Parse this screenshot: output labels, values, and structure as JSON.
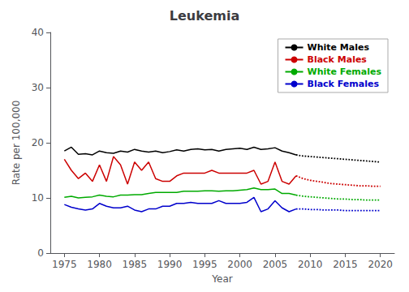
{
  "chart_data": {
    "type": "line",
    "title": "Leukemia",
    "xlabel": "Year",
    "ylabel": "Rate per 100,000",
    "xlim": [
      1973,
      2022
    ],
    "xticks": [
      1975,
      1980,
      1985,
      1990,
      1995,
      2000,
      2005,
      2010,
      2015,
      2020
    ],
    "ylim": [
      0,
      40
    ],
    "yticks": [
      0,
      10,
      20,
      30,
      40
    ],
    "grid": false,
    "legend": "upper right",
    "series": [
      {
        "name": "White Males",
        "color": "#000000",
        "line_style": "solid",
        "x": [
          1975,
          1976,
          1977,
          1978,
          1979,
          1980,
          1981,
          1982,
          1983,
          1984,
          1985,
          1986,
          1987,
          1988,
          1989,
          1990,
          1991,
          1992,
          1993,
          1994,
          1995,
          1996,
          1997,
          1998,
          1999,
          2000,
          2001,
          2002,
          2003,
          2004,
          2005,
          2006,
          2007,
          2008
        ],
        "values": [
          18.5,
          19.2,
          17.9,
          18.0,
          17.8,
          18.5,
          18.2,
          18.1,
          18.5,
          18.3,
          18.8,
          18.5,
          18.3,
          18.5,
          18.2,
          18.4,
          18.7,
          18.5,
          18.8,
          18.9,
          18.7,
          18.8,
          18.5,
          18.8,
          18.9,
          19.0,
          18.8,
          19.2,
          18.8,
          18.9,
          19.1,
          18.5,
          18.2,
          17.8
        ]
      },
      {
        "name": "Black Males",
        "color": "#cc0000",
        "line_style": "solid",
        "x": [
          1975,
          1976,
          1977,
          1978,
          1979,
          1980,
          1981,
          1982,
          1983,
          1984,
          1985,
          1986,
          1987,
          1988,
          1989,
          1990,
          1991,
          1992,
          1993,
          1994,
          1995,
          1996,
          1997,
          1998,
          1999,
          2000,
          2001,
          2002,
          2003,
          2004,
          2005,
          2006,
          2007,
          2008
        ],
        "values": [
          17.0,
          15.0,
          13.5,
          14.5,
          13.0,
          16.0,
          13.0,
          17.5,
          16.0,
          12.5,
          16.5,
          15.0,
          16.5,
          13.5,
          13.0,
          13.0,
          14.0,
          14.5,
          14.5,
          14.5,
          14.5,
          15.0,
          14.5,
          14.5,
          14.5,
          14.5,
          14.5,
          15.0,
          12.5,
          13.0,
          16.5,
          13.0,
          12.5,
          14.0
        ]
      },
      {
        "name": "White Females",
        "color": "#00aa00",
        "line_style": "solid",
        "x": [
          1975,
          1976,
          1977,
          1978,
          1979,
          1980,
          1981,
          1982,
          1983,
          1984,
          1985,
          1986,
          1987,
          1988,
          1989,
          1990,
          1991,
          1992,
          1993,
          1994,
          1995,
          1996,
          1997,
          1998,
          1999,
          2000,
          2001,
          2002,
          2003,
          2004,
          2005,
          2006,
          2007,
          2008
        ],
        "values": [
          10.1,
          10.3,
          10.0,
          10.1,
          10.2,
          10.5,
          10.3,
          10.2,
          10.5,
          10.5,
          10.6,
          10.6,
          10.8,
          11.0,
          11.0,
          11.0,
          11.0,
          11.2,
          11.2,
          11.2,
          11.3,
          11.3,
          11.2,
          11.3,
          11.3,
          11.4,
          11.5,
          11.8,
          11.5,
          11.5,
          11.6,
          10.8,
          10.8,
          10.5
        ]
      },
      {
        "name": "Black Females",
        "color": "#0000cc",
        "line_style": "solid",
        "x": [
          1975,
          1976,
          1977,
          1978,
          1979,
          1980,
          1981,
          1982,
          1983,
          1984,
          1985,
          1986,
          1987,
          1988,
          1989,
          1990,
          1991,
          1992,
          1993,
          1994,
          1995,
          1996,
          1997,
          1998,
          1999,
          2000,
          2001,
          2002,
          2003,
          2004,
          2005,
          2006,
          2007,
          2008
        ],
        "values": [
          8.8,
          8.3,
          8.0,
          7.8,
          8.0,
          9.0,
          8.5,
          8.2,
          8.2,
          8.5,
          7.8,
          7.5,
          8.0,
          8.0,
          8.5,
          8.5,
          9.0,
          9.0,
          9.2,
          9.0,
          9.0,
          9.0,
          9.5,
          9.0,
          9.0,
          9.0,
          9.2,
          10.1,
          7.5,
          8.0,
          9.5,
          8.2,
          7.5,
          8.0
        ]
      },
      {
        "name": "White Males",
        "color": "#000000",
        "line_style": "dotted",
        "x": [
          2008,
          2009,
          2010,
          2011,
          2012,
          2013,
          2014,
          2015,
          2016,
          2017,
          2018,
          2019,
          2020
        ],
        "values": [
          17.8,
          17.6,
          17.5,
          17.4,
          17.3,
          17.2,
          17.1,
          17.0,
          16.9,
          16.8,
          16.7,
          16.6,
          16.5
        ]
      },
      {
        "name": "Black Males",
        "color": "#cc0000",
        "line_style": "dotted",
        "x": [
          2008,
          2009,
          2010,
          2011,
          2012,
          2013,
          2014,
          2015,
          2016,
          2017,
          2018,
          2019,
          2020
        ],
        "values": [
          14.0,
          13.5,
          13.2,
          13.0,
          12.8,
          12.6,
          12.5,
          12.4,
          12.3,
          12.2,
          12.2,
          12.1,
          12.1
        ]
      },
      {
        "name": "White Females",
        "color": "#00aa00",
        "line_style": "dotted",
        "x": [
          2008,
          2009,
          2010,
          2011,
          2012,
          2013,
          2014,
          2015,
          2016,
          2017,
          2018,
          2019,
          2020
        ],
        "values": [
          10.5,
          10.3,
          10.2,
          10.1,
          10.0,
          9.9,
          9.8,
          9.8,
          9.7,
          9.7,
          9.6,
          9.6,
          9.6
        ]
      },
      {
        "name": "Black Females",
        "color": "#0000cc",
        "line_style": "dotted",
        "x": [
          2008,
          2009,
          2010,
          2011,
          2012,
          2013,
          2014,
          2015,
          2016,
          2017,
          2018,
          2019,
          2020
        ],
        "values": [
          8.0,
          8.0,
          7.9,
          7.9,
          7.8,
          7.8,
          7.8,
          7.7,
          7.7,
          7.7,
          7.7,
          7.7,
          7.7
        ]
      }
    ]
  }
}
